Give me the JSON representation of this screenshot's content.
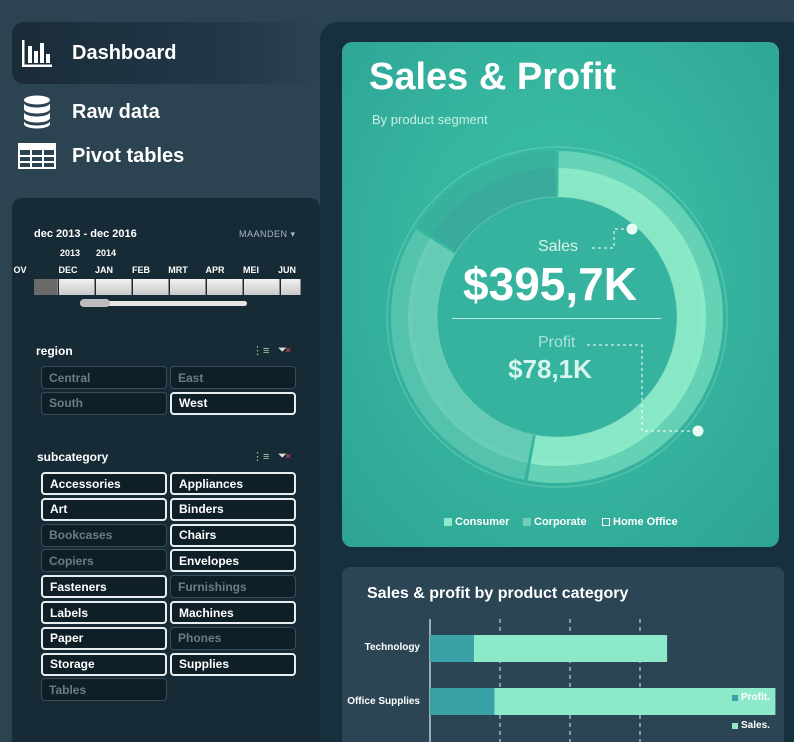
{
  "nav": {
    "dashboard": "Dashboard",
    "raw_data": "Raw data",
    "pivot_tables": "Pivot tables"
  },
  "timeline": {
    "range": "dec 2013 - dec 2016",
    "unit": "MAANDEN",
    "years": [
      "2013",
      "2014"
    ],
    "months": [
      "OV",
      "DEC",
      "JAN",
      "FEB",
      "MRT",
      "APR",
      "MEI",
      "JUN"
    ]
  },
  "region": {
    "title": "region",
    "items": [
      {
        "label": "Central",
        "selected": false
      },
      {
        "label": "East",
        "selected": false
      },
      {
        "label": "South",
        "selected": false
      },
      {
        "label": "West",
        "selected": true
      }
    ]
  },
  "subcategory": {
    "title": "subcategory",
    "items": [
      {
        "label": "Accessories",
        "selected": true
      },
      {
        "label": "Appliances",
        "selected": true
      },
      {
        "label": "Art",
        "selected": true
      },
      {
        "label": "Binders",
        "selected": true
      },
      {
        "label": "Bookcases",
        "selected": false
      },
      {
        "label": "Chairs",
        "selected": true
      },
      {
        "label": "Copiers",
        "selected": false
      },
      {
        "label": "Envelopes",
        "selected": true
      },
      {
        "label": "Fasteners",
        "selected": true
      },
      {
        "label": "Furnishings",
        "selected": false
      },
      {
        "label": "Labels",
        "selected": true
      },
      {
        "label": "Machines",
        "selected": true
      },
      {
        "label": "Paper",
        "selected": true
      },
      {
        "label": "Phones",
        "selected": false
      },
      {
        "label": "Storage",
        "selected": true
      },
      {
        "label": "Supplies",
        "selected": true
      },
      {
        "label": "Tables",
        "selected": false
      }
    ]
  },
  "sales_card": {
    "title": "Sales & Profit",
    "subtitle": "By product segment",
    "sales_label": "Sales",
    "sales_value": "$395,7K",
    "profit_label": "Profit",
    "profit_value": "$78,1K",
    "legend": [
      "Consumer",
      "Corporate",
      "Home Office"
    ]
  },
  "category_card": {
    "title": "Sales & profit by product category",
    "legend_profit": "Profit.",
    "legend_sales": "Sales."
  },
  "colors": {
    "consumer": "#8ceac8",
    "corporate": "#6fcfb8",
    "home_office": "#3aa89a",
    "profit_bar": "#3aa2a6",
    "sales_bar": "#8ceacb"
  },
  "chart_data": [
    {
      "type": "pie",
      "title": "Sales & Profit",
      "subtitle": "By product segment",
      "legend": [
        "Consumer",
        "Corporate",
        "Home Office"
      ],
      "series": [
        {
          "name": "Sales",
          "categories": [
            "Consumer",
            "Corporate",
            "Home Office"
          ],
          "values": [
            53,
            31,
            16
          ]
        },
        {
          "name": "Profit",
          "categories": [
            "Consumer",
            "Corporate",
            "Home Office"
          ],
          "values": [
            53,
            31,
            16
          ]
        }
      ]
    },
    {
      "type": "bar",
      "orientation": "horizontal",
      "title": "Sales & profit by product category",
      "categories": [
        "Technology",
        "Office Supplies"
      ],
      "series": [
        {
          "name": "Profit.",
          "values": [
            15,
            22
          ]
        },
        {
          "name": "Sales.",
          "values": [
            66,
            96
          ]
        }
      ],
      "stacked": true,
      "grid": true
    }
  ]
}
